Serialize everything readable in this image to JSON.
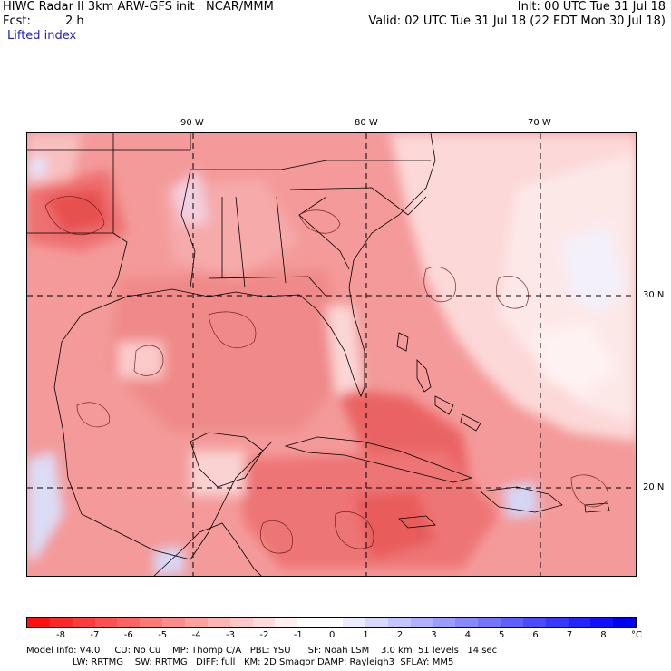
{
  "header": {
    "title": "HIWC Radar II 3km ARW-GFS init   NCAR/MMM",
    "forecast_label": "Fcst:",
    "forecast_value": "2 h",
    "field": "Lifted index",
    "init": "Init: 00 UTC Tue 31 Jul 18",
    "valid": "Valid: 02 UTC Tue 31 Jul 18 (22 EDT Mon 30 Jul 18)"
  },
  "map": {
    "lon_labels": [
      "90 W",
      "80 W",
      "70 W"
    ],
    "lat_labels": [
      "30 N",
      "20 N"
    ],
    "colors": {
      "land_field": "#f4a0a0",
      "ocean_field": "#f08888",
      "atlantic_light": "#fcdede",
      "strong_red": "#e85858",
      "blue_patch": "#c8c8f8",
      "line": "#000000"
    }
  },
  "colorbar": {
    "ticks": [
      "-8",
      "-7",
      "-6",
      "-5",
      "-4",
      "-3",
      "-2",
      "-1",
      "0",
      "1",
      "2",
      "3",
      "4",
      "5",
      "6",
      "7",
      "8"
    ],
    "unit": "°C",
    "colors": [
      "#ff1010",
      "#ff2828",
      "#ff3c3c",
      "#ff5050",
      "#ff6464",
      "#ff7878",
      "#ff8c8c",
      "#ffa0a0",
      "#ffb4b4",
      "#ffc8c8",
      "#ffdcdc",
      "#fff0f0",
      "#ffffff",
      "#ffffff",
      "#ececff",
      "#d8d8ff",
      "#c4c4ff",
      "#b0b0ff",
      "#9c9cff",
      "#8888ff",
      "#7474ff",
      "#6060ff",
      "#4c4cff",
      "#3838ff",
      "#2424ff",
      "#1010ff",
      "#0000f0"
    ]
  },
  "footer": {
    "line1": "Model Info: V4.0     CU: No Cu    MP: Thomp C/A   PBL: YSU      SF: Noah LSM    3.0 km  51 levels   14 sec",
    "line2": "                LW: RRTMG    SW: RRTMG   DIFF: full   KM: 2D Smagor DAMP: Rayleigh3  SFLAY: MM5"
  }
}
